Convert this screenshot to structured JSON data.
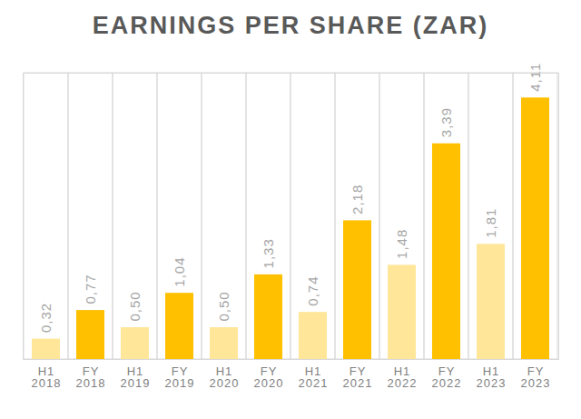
{
  "chart_data": {
    "type": "bar",
    "title": "EARNINGS PER SHARE (ZAR)",
    "categories": [
      "H1 2018",
      "FY 2018",
      "H1 2019",
      "FY 2019",
      "H1 2020",
      "FY 2020",
      "H1 2021",
      "FY 2021",
      "H1 2022",
      "FY 2022",
      "H1 2023",
      "FY 2023"
    ],
    "values": [
      0.32,
      0.77,
      0.5,
      1.04,
      0.5,
      1.33,
      0.74,
      2.18,
      1.48,
      3.39,
      1.81,
      4.11
    ],
    "value_labels": [
      "0,32",
      "0,77",
      "0,50",
      "1,04",
      "0,50",
      "1,33",
      "0,74",
      "2,18",
      "1,48",
      "3,39",
      "1,81",
      "4,11"
    ],
    "colors": [
      "#ffe699",
      "#ffc000",
      "#ffe699",
      "#ffc000",
      "#ffe699",
      "#ffc000",
      "#ffe699",
      "#ffc000",
      "#ffe699",
      "#ffc000",
      "#ffe699",
      "#ffc000"
    ],
    "ylim": [
      0,
      4.5
    ],
    "data_labels": true,
    "tick_labels": "x",
    "grid": true
  }
}
